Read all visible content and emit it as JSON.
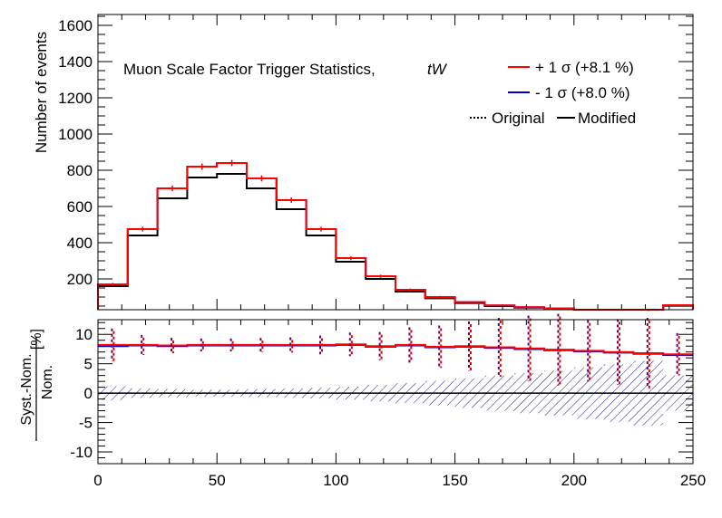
{
  "chart_data": [
    {
      "type": "histogram",
      "panel": "upper",
      "annotation": "Muon Scale Factor Trigger Statistics,",
      "annotation_process": "tW",
      "ylabel": "Number of events",
      "xlim": [
        0,
        250
      ],
      "ylim": [
        30,
        1660
      ],
      "y_ticks": [
        200,
        400,
        600,
        800,
        1000,
        1200,
        1400,
        1600
      ],
      "bin_edges": [
        0,
        12.5,
        25,
        37.5,
        50,
        62.5,
        75,
        87.5,
        100,
        112.5,
        125,
        137.5,
        150,
        162.5,
        175,
        187.5,
        200,
        212.5,
        225,
        237.5,
        250
      ],
      "legend_position": "top-right",
      "legend": [
        {
          "label": "+ 1 σ (+8.1 %)",
          "color": "#ff0000",
          "style": "solid"
        },
        {
          "label": "- 1 σ (+8.0 %)",
          "color": "#0000cc",
          "style": "solid"
        },
        {
          "label": "Original",
          "color": "#000000",
          "style": "dotted"
        },
        {
          "label": "Modified",
          "color": "#000000",
          "style": "solid"
        }
      ],
      "series": [
        {
          "key": "up",
          "color": "#ff0000",
          "values": [
            170,
            475,
            700,
            820,
            840,
            755,
            635,
            475,
            315,
            215,
            140,
            100,
            72,
            54,
            44,
            37,
            30,
            25,
            20,
            55
          ]
        },
        {
          "key": "down",
          "color": "#0000cc",
          "values": [
            170,
            475,
            700,
            820,
            840,
            755,
            635,
            475,
            315,
            215,
            140,
            100,
            72,
            54,
            44,
            37,
            30,
            25,
            20,
            55
          ]
        },
        {
          "key": "nominal",
          "color": "#000000",
          "values": [
            160,
            440,
            645,
            760,
            780,
            700,
            585,
            440,
            295,
            200,
            130,
            93,
            67,
            50,
            41,
            34,
            28,
            23,
            19,
            52
          ]
        }
      ]
    },
    {
      "type": "ratio",
      "panel": "lower",
      "ylabel_numerator": "Syst.-Nom.",
      "ylabel_denominator": "Nom.",
      "ylabel_unit": "[%]",
      "xlim": [
        0,
        250
      ],
      "ylim": [
        -12,
        12.5
      ],
      "y_ticks": [
        -10,
        -5,
        0,
        5,
        10
      ],
      "x_ticks": [
        0,
        50,
        100,
        150,
        200,
        250
      ],
      "bin_edges": [
        0,
        12.5,
        25,
        37.5,
        50,
        62.5,
        75,
        87.5,
        100,
        112.5,
        125,
        137.5,
        150,
        162.5,
        175,
        187.5,
        200,
        212.5,
        225,
        237.5,
        250
      ],
      "up_values": [
        8.2,
        8.2,
        8.1,
        8.2,
        8.2,
        8.2,
        8.2,
        8.2,
        8.3,
        8.0,
        8.2,
        7.9,
        8.0,
        7.8,
        7.6,
        7.4,
        7.2,
        7.0,
        6.8,
        6.6
      ],
      "down_values": [
        8.0,
        8.1,
        8.0,
        8.1,
        8.1,
        8.1,
        8.1,
        8.1,
        8.2,
        7.9,
        8.1,
        7.8,
        7.9,
        7.7,
        7.5,
        7.3,
        7.1,
        6.9,
        6.7,
        6.5
      ],
      "stat_errors": [
        2.8,
        1.7,
        1.3,
        1.1,
        1.1,
        1.2,
        1.3,
        1.6,
        2.0,
        2.4,
        3.0,
        3.6,
        4.2,
        5.0,
        5.6,
        6.1,
        5.2,
        5.6,
        6.0,
        3.6
      ],
      "band_half_width": [
        1.2,
        0.8,
        0.7,
        0.6,
        0.6,
        0.7,
        0.8,
        0.9,
        1.1,
        1.4,
        1.7,
        2.1,
        2.5,
        3.0,
        3.4,
        3.8,
        4.4,
        4.9,
        5.5,
        3.0
      ]
    }
  ]
}
